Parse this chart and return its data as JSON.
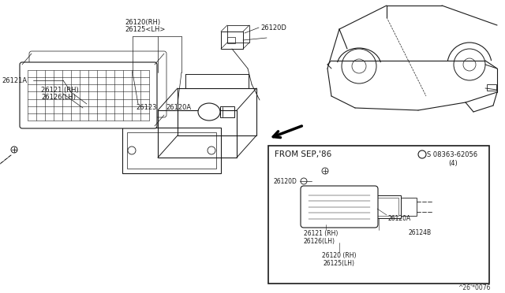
{
  "bg_color": "#ffffff",
  "line_color": "#1a1a1a",
  "fig_width": 6.4,
  "fig_height": 3.72,
  "dpi": 100,
  "watermark": "^26'*0076",
  "labels": {
    "top_left_line1": "26120(RH)",
    "top_left_line2": "26125<LH>",
    "left_label": "26121A",
    "left_sub1": "26121 (RH)",
    "left_sub2": "26126(LH)",
    "mid_label1": "26123",
    "mid_label2": "26120A",
    "top_label3": "26120D",
    "inset_title": "FROM SEP,'86",
    "inset_part1_line1": "26121 (RH)",
    "inset_part1_line2": "26126(LH)",
    "inset_part2": "26120A",
    "inset_part3": "26124B",
    "inset_part4_line1": "26120 (RH)",
    "inset_part4_line2": "26125(LH)",
    "inset_left": "26120D",
    "inset_screw": "S 08363-62056",
    "inset_screw2": "(4)"
  }
}
